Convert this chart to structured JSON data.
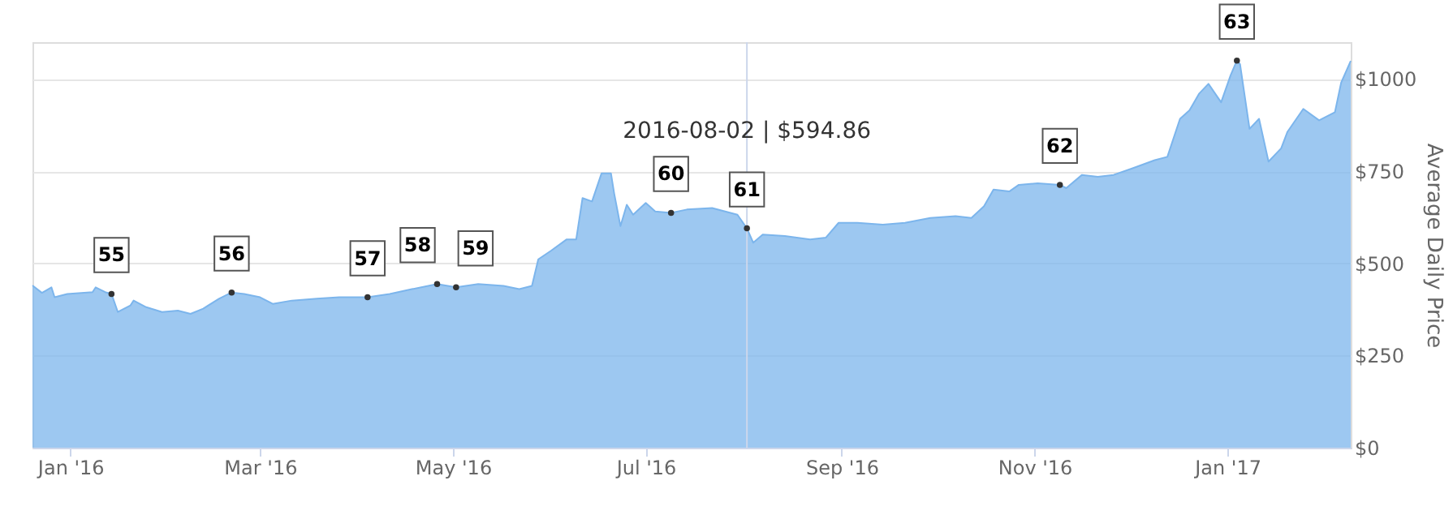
{
  "chart_data": {
    "type": "area",
    "ylabel": "Average Daily Price",
    "x": [
      "2015-12-20",
      "2015-12-23",
      "2015-12-26",
      "2015-12-27",
      "2015-12-31",
      "2016-01-08",
      "2016-01-09",
      "2016-01-12",
      "2016-01-14",
      "2016-01-16",
      "2016-01-20",
      "2016-01-21",
      "2016-01-25",
      "2016-01-30",
      "2016-02-04",
      "2016-02-08",
      "2016-02-12",
      "2016-02-17",
      "2016-02-21",
      "2016-02-25",
      "2016-03-01",
      "2016-03-05",
      "2016-03-11",
      "2016-03-19",
      "2016-03-26",
      "2016-04-04",
      "2016-04-11",
      "2016-04-18",
      "2016-04-26",
      "2016-05-02",
      "2016-05-09",
      "2016-05-17",
      "2016-05-22",
      "2016-05-26",
      "2016-05-28",
      "2016-06-01",
      "2016-06-06",
      "2016-06-09",
      "2016-06-11",
      "2016-06-14",
      "2016-06-17",
      "2016-06-20",
      "2016-06-21",
      "2016-06-23",
      "2016-06-25",
      "2016-06-27",
      "2016-07-01",
      "2016-07-04",
      "2016-07-09",
      "2016-07-14",
      "2016-07-22",
      "2016-07-30",
      "2016-08-02",
      "2016-08-04",
      "2016-08-07",
      "2016-08-14",
      "2016-08-22",
      "2016-08-27",
      "2016-08-31",
      "2016-09-06",
      "2016-09-14",
      "2016-09-21",
      "2016-09-29",
      "2016-10-07",
      "2016-10-12",
      "2016-10-16",
      "2016-10-19",
      "2016-10-24",
      "2016-10-27",
      "2016-11-02",
      "2016-11-09",
      "2016-11-11",
      "2016-11-16",
      "2016-11-21",
      "2016-11-26",
      "2016-12-02",
      "2016-12-09",
      "2016-12-13",
      "2016-12-17",
      "2016-12-20",
      "2016-12-23",
      "2016-12-26",
      "2016-12-30",
      "2017-01-02",
      "2017-01-04",
      "2017-01-05",
      "2017-01-08",
      "2017-01-11",
      "2017-01-14",
      "2017-01-18",
      "2017-01-20",
      "2017-01-25",
      "2017-01-30",
      "2017-02-04",
      "2017-02-06",
      "2017-02-09"
    ],
    "series": [
      {
        "color": "#7cb5ec",
        "values": [
          440,
          420,
          435,
          408,
          417,
          422,
          435,
          422,
          417,
          368,
          386,
          399,
          381,
          368,
          372,
          363,
          377,
          404,
          421,
          417,
          408,
          390,
          399,
          404,
          408,
          408,
          417,
          430,
          444,
          435,
          444,
          439,
          430,
          439,
          511,
          534,
          565,
          565,
          677,
          668,
          744,
          744,
          690,
          601,
          659,
          632,
          664,
          641,
          637,
          646,
          650,
          632,
          594.86,
          556,
          578,
          574,
          565,
          570,
          610,
          610,
          605,
          610,
          623,
          628,
          623,
          655,
          700,
          695,
          713,
          717,
          713,
          704,
          740,
          735,
          740,
          758,
          780,
          789,
          892,
          915,
          960,
          987,
          937,
          1010,
          1050,
          1040,
          865,
          892,
          776,
          812,
          857,
          919,
          888,
          910,
          991,
          1049
        ]
      }
    ],
    "xlim": [
      "2015-12-20",
      "2017-02-09"
    ],
    "xticks": [
      {
        "value": "2016-01-01",
        "label": "Jan '16"
      },
      {
        "value": "2016-03-01",
        "label": "Mar '16"
      },
      {
        "value": "2016-05-01",
        "label": "May '16"
      },
      {
        "value": "2016-07-01",
        "label": "Jul '16"
      },
      {
        "value": "2016-09-01",
        "label": "Sep '16"
      },
      {
        "value": "2016-11-01",
        "label": "Nov '16"
      },
      {
        "value": "2017-01-01",
        "label": "Jan '17"
      }
    ],
    "ylim": [
      0,
      1100
    ],
    "yticks": [
      {
        "value": 0,
        "label": "$0"
      },
      {
        "value": 250,
        "label": "$250"
      },
      {
        "value": 500,
        "label": "$500"
      },
      {
        "value": 750,
        "label": "$750"
      },
      {
        "value": 1000,
        "label": "$1000"
      }
    ],
    "grid": "y",
    "ref_lines": [
      {
        "axis": "x",
        "value": "2016-08-02",
        "label": "2016-08-02 | $594.86",
        "color": "#ccd6eb"
      }
    ],
    "annotations": [
      {
        "text": "55",
        "x": "2016-01-14",
        "y": 417
      },
      {
        "text": "56",
        "x": "2016-02-21",
        "y": 421
      },
      {
        "text": "57",
        "x": "2016-04-04",
        "y": 408
      },
      {
        "text": "58",
        "x": "2016-04-26",
        "y": 444
      },
      {
        "text": "59",
        "x": "2016-05-02",
        "y": 435
      },
      {
        "text": "60",
        "x": "2016-07-09",
        "y": 637
      },
      {
        "text": "61",
        "x": "2016-08-02",
        "y": 594.86
      },
      {
        "text": "62",
        "x": "2016-11-09",
        "y": 713
      },
      {
        "text": "63",
        "x": "2017-01-04",
        "y": 1050
      }
    ]
  }
}
